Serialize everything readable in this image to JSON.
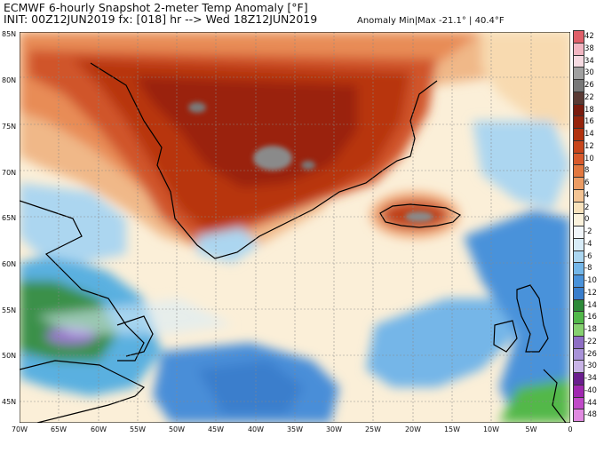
{
  "header": {
    "title_line1": "ECMWF 6-hourly Snapshot 2-meter Temp Anomaly [°F]",
    "title_line2": "INIT: 00Z12JUN2019 fx: [018] hr --> Wed 18Z12JUN2019",
    "minmax": "Anomaly Min|Max -21.1° | 40.4°F"
  },
  "map": {
    "lat_labels": [
      "85N",
      "80N",
      "75N",
      "70N",
      "65N",
      "60N",
      "55N",
      "50N",
      "45N"
    ],
    "lon_labels": [
      "70W",
      "65W",
      "60W",
      "55W",
      "50W",
      "45W",
      "40W",
      "35W",
      "30W",
      "25W",
      "20W",
      "15W",
      "10W",
      "5W",
      "0"
    ]
  },
  "colorbar": {
    "labels": [
      "42",
      "38",
      "34",
      "30",
      "26",
      "22",
      "18",
      "16",
      "14",
      "12",
      "10",
      "8",
      "6",
      "4",
      "2",
      "0",
      "-2",
      "-4",
      "-6",
      "-8",
      "-10",
      "-12",
      "-14",
      "-16",
      "-18",
      "-22",
      "-26",
      "-30",
      "-34",
      "-40",
      "-44",
      "-48"
    ],
    "colors": [
      "#e0606a",
      "#f2b6c2",
      "#f6dbe2",
      "#a0a0a0",
      "#787878",
      "#5a3a34",
      "#7a1c0e",
      "#96240c",
      "#b2320e",
      "#c8461c",
      "#d85a2c",
      "#e27840",
      "#ec9c64",
      "#f4c494",
      "#f8e2bc",
      "#fbf2dc",
      "#f2f7fb",
      "#d8ecf8",
      "#acd6f0",
      "#74b6e8",
      "#4a92da",
      "#3a7ecc",
      "#2e8a3a",
      "#52b84a",
      "#86d070",
      "#8e6ec4",
      "#a892d8",
      "#c8b4e6",
      "#6a1e8e",
      "#a028b0",
      "#c04ac8",
      "#e08ae0"
    ]
  }
}
